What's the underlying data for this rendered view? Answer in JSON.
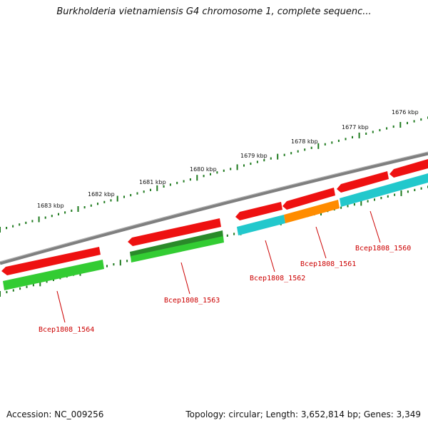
{
  "title": "Burkholderia vietnamiensis G4 chromosome 1, complete sequenc...",
  "footer": {
    "accession": "Accession: NC_009256",
    "summary": "Topology: circular; Length: 3,652,814 bp; Genes: 3,349"
  },
  "scale_labels": [
    "1676 kbp",
    "1677 kbp",
    "1678 kbp",
    "1679 kbp",
    "1680 kbp",
    "1681 kbp",
    "1682 kbp",
    "1683 kbp"
  ],
  "gene_labels": [
    "Bcep1808_1560",
    "Bcep1808_1561",
    "Bcep1808_1562",
    "Bcep1808_1563",
    "Bcep1808_1564"
  ],
  "colors": {
    "backbone": "#808080",
    "cds_forward": "#ee1111",
    "feature_reverse": "#33cc33",
    "feature_dark": "#2a8a2a",
    "feature_cyan": "#22c8cc",
    "feature_orange": "#ff8c00",
    "tick": "#1e7a1e",
    "label_text": "#cc0000"
  }
}
